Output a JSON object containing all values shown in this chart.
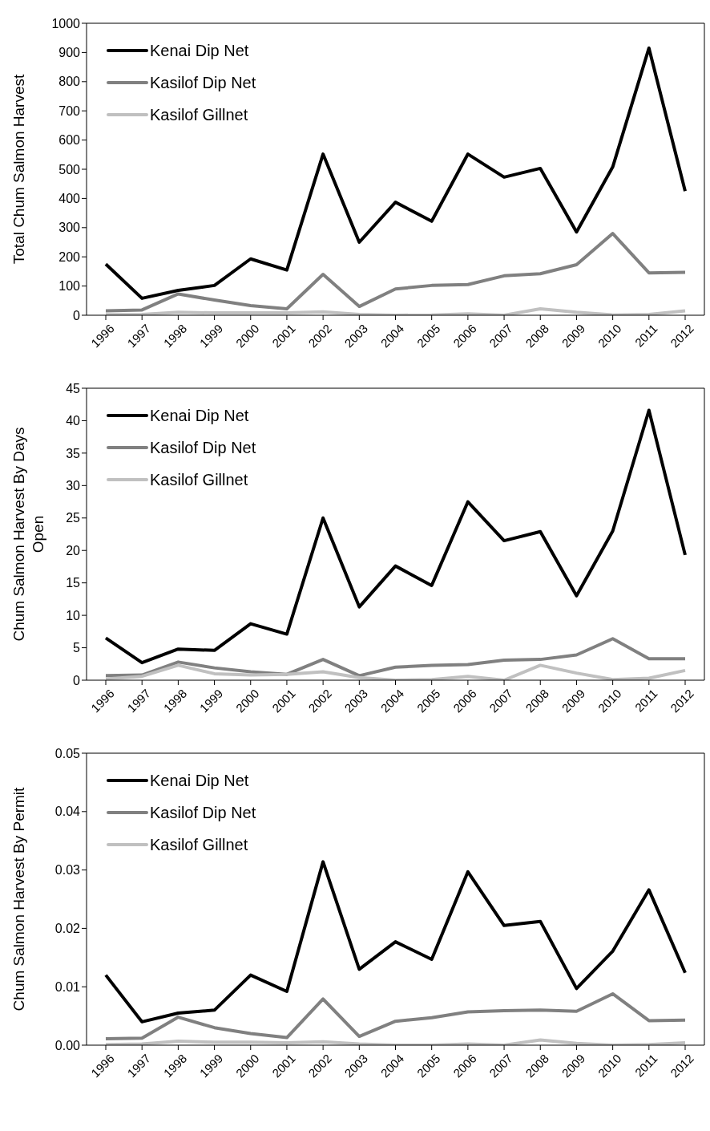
{
  "chart_data": [
    {
      "type": "line",
      "ylabel": "Total Chum Salmon Harvest",
      "categories": [
        "1996",
        "1997",
        "1998",
        "1999",
        "2000",
        "2001",
        "2002",
        "2003",
        "2004",
        "2005",
        "2006",
        "2007",
        "2008",
        "2009",
        "2010",
        "2011",
        "2012"
      ],
      "series": [
        {
          "name": "Kenai Dip Net",
          "color": "#000000",
          "values": [
            175,
            58,
            85,
            102,
            193,
            155,
            552,
            250,
            387,
            322,
            552,
            473,
            503,
            285,
            508,
            915,
            425
          ]
        },
        {
          "name": "Kasilof Dip Net",
          "color": "#808080",
          "values": [
            15,
            18,
            73,
            52,
            33,
            22,
            140,
            30,
            90,
            102,
            105,
            135,
            142,
            173,
            280,
            145,
            147
          ]
        },
        {
          "name": "Kasilof Gillnet",
          "color": "#c0c0c0",
          "values": [
            2,
            3,
            10,
            8,
            8,
            8,
            12,
            3,
            0,
            1,
            5,
            0,
            22,
            10,
            1,
            3,
            15
          ]
        }
      ],
      "ylim": [
        0,
        1000
      ],
      "yticks": [
        0,
        100,
        200,
        300,
        400,
        500,
        600,
        700,
        800,
        900,
        1000
      ],
      "grid": false,
      "legend": "top left",
      "marker": "none",
      "line_style": "solid"
    },
    {
      "type": "line",
      "ylabel": "Chum Salmon Harvest By Days Open",
      "categories": [
        "1996",
        "1997",
        "1998",
        "1999",
        "2000",
        "2001",
        "2002",
        "2003",
        "2004",
        "2005",
        "2006",
        "2007",
        "2008",
        "2009",
        "2010",
        "2011",
        "2012"
      ],
      "series": [
        {
          "name": "Kenai Dip Net",
          "color": "#000000",
          "values": [
            6.5,
            2.7,
            4.8,
            4.6,
            8.7,
            7.1,
            25,
            11.3,
            17.6,
            14.6,
            27.5,
            21.5,
            22.9,
            13,
            23,
            41.6,
            19.3
          ]
        },
        {
          "name": "Kasilof Dip Net",
          "color": "#808080",
          "values": [
            0.7,
            0.8,
            2.8,
            1.9,
            1.3,
            0.9,
            3.2,
            0.7,
            2.0,
            2.3,
            2.4,
            3.1,
            3.2,
            3.9,
            6.4,
            3.3,
            3.3
          ]
        },
        {
          "name": "Kasilof Gillnet",
          "color": "#c0c0c0",
          "values": [
            0.2,
            0.6,
            2.3,
            1.0,
            0.8,
            0.9,
            1.3,
            0.4,
            0,
            0.1,
            0.6,
            0,
            2.3,
            1.1,
            0.1,
            0.3,
            1.5
          ]
        }
      ],
      "ylim": [
        0,
        45
      ],
      "yticks": [
        0,
        5,
        10,
        15,
        20,
        25,
        30,
        35,
        40,
        45
      ],
      "grid": false,
      "legend": "top left",
      "marker": "none",
      "line_style": "solid"
    },
    {
      "type": "line",
      "ylabel": "Chum Salmon Harvest By Permit",
      "categories": [
        "1996",
        "1997",
        "1998",
        "1999",
        "2000",
        "2001",
        "2002",
        "2003",
        "2004",
        "2005",
        "2006",
        "2007",
        "2008",
        "2009",
        "2010",
        "2011",
        "2012"
      ],
      "series": [
        {
          "name": "Kenai Dip Net",
          "color": "#000000",
          "values": [
            0.012,
            0.004,
            0.0055,
            0.006,
            0.012,
            0.0092,
            0.0314,
            0.013,
            0.0177,
            0.0147,
            0.0297,
            0.0205,
            0.0212,
            0.0097,
            0.0161,
            0.0266,
            0.0124
          ]
        },
        {
          "name": "Kasilof Dip Net",
          "color": "#808080",
          "values": [
            0.0011,
            0.0012,
            0.0048,
            0.003,
            0.002,
            0.0013,
            0.0079,
            0.0015,
            0.0041,
            0.0047,
            0.0057,
            0.0059,
            0.006,
            0.0058,
            0.0088,
            0.0042,
            0.0043
          ]
        },
        {
          "name": "Kasilof Gillnet",
          "color": "#c0c0c0",
          "values": [
            0.0001,
            0.0002,
            0.0007,
            0.0005,
            0.0005,
            0.0004,
            0.0006,
            0.0002,
            0,
            0,
            0.0002,
            0,
            0.0009,
            0.0003,
            0,
            0.0001,
            0.0004
          ]
        }
      ],
      "ylim": [
        0,
        0.05
      ],
      "yticks": [
        {
          "value": 0,
          "label": "0.00"
        },
        {
          "value": 0.01,
          "label": "0.01"
        },
        {
          "value": 0.02,
          "label": "0.02"
        },
        {
          "value": 0.03,
          "label": "0.03"
        },
        {
          "value": 0.04,
          "label": "0.04"
        },
        {
          "value": 0.05,
          "label": "0.05"
        }
      ],
      "grid": false,
      "legend": "top left",
      "marker": "none",
      "line_style": "solid"
    }
  ]
}
